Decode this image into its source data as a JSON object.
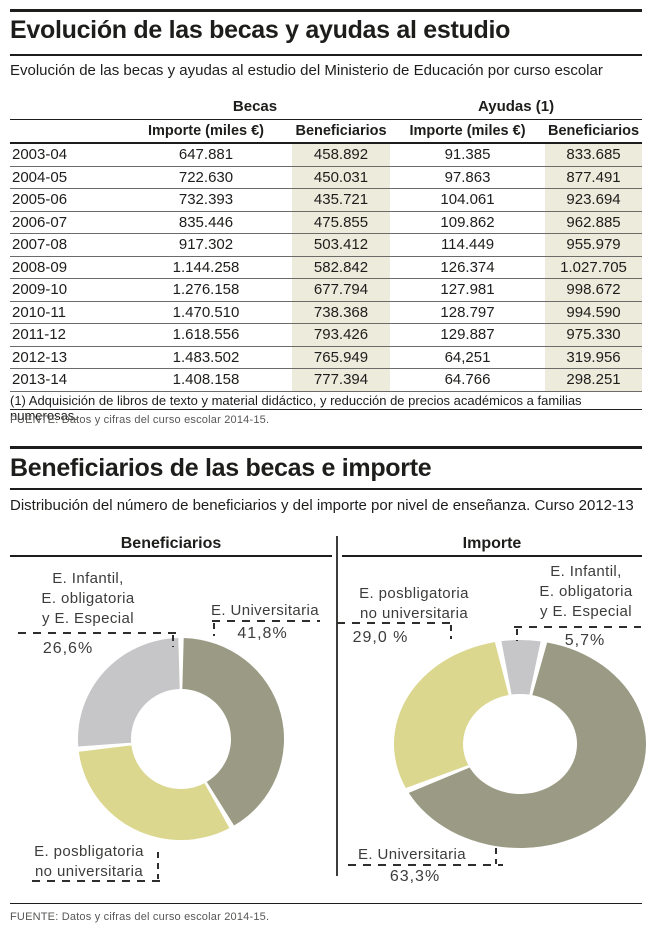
{
  "colors": {
    "olive": "#9b9b85",
    "pale_yellow": "#dbd78e",
    "light_gray": "#c6c6c9",
    "row_highlight": "#edebdc",
    "ink": "#1d1d1b"
  },
  "section1": {
    "title": "Evolución de las becas y ayudas al estudio",
    "subtitle": "Evolución de las becas y ayudas al estudio del Ministerio de Educación por curso escolar",
    "table": {
      "group_headers": [
        "Becas",
        "Ayudas (1)"
      ],
      "col_headers": [
        "",
        "Importe (miles €)",
        "Beneficiarios",
        "Importe (miles €)",
        "Beneficiarios"
      ],
      "rows": [
        [
          "2003-04",
          "647.881",
          "458.892",
          "91.385",
          "833.685"
        ],
        [
          "2004-05",
          "722.630",
          "450.031",
          "97.863",
          "877.491"
        ],
        [
          "2005-06",
          "732.393",
          "435.721",
          "104.061",
          "923.694"
        ],
        [
          "2006-07",
          "835.446",
          "475.855",
          "109.862",
          "962.885"
        ],
        [
          "2007-08",
          "917.302",
          "503.412",
          "114.449",
          "955.979"
        ],
        [
          "2008-09",
          "1.144.258",
          "582.842",
          "126.374",
          "1.027.705"
        ],
        [
          "2009-10",
          "1.276.158",
          "677.794",
          "127.981",
          "998.672"
        ],
        [
          "2010-11",
          "1.470.510",
          "738.368",
          "128.797",
          "994.590"
        ],
        [
          "2011-12",
          "1.618.556",
          "793.426",
          "129.887",
          "975.330"
        ],
        [
          "2012-13",
          "1.483.502",
          "765.949",
          "64,251",
          "319.956"
        ],
        [
          "2013-14",
          "1.408.158",
          "777.394",
          "64.766",
          "298.251"
        ]
      ]
    },
    "footnote": "(1) Adquisición de libros de texto y material didáctico, y reducción de precios académicos a familias numerosas.",
    "source": "FUENTE: Datos y cifras del curso escolar 2014-15."
  },
  "section2": {
    "title": "Beneficiarios de las becas e importe",
    "subtitle": "Distribución del número de beneficiarios y del importe por nivel de enseñanza. Curso 2012-13",
    "source": "FUENTE: Datos y cifras del curso escolar 2014-15."
  },
  "chart_data": [
    {
      "type": "pie",
      "title": "Beneficiarios",
      "donut": true,
      "legend_position": "callouts",
      "slices": [
        {
          "label": "E. Universitaria",
          "value": 41.8,
          "pct_label": "41,8%",
          "color": "#9b9b85"
        },
        {
          "label": "E. posbligatoria no universitaria",
          "value": 31.6,
          "pct_label": "",
          "color": "#dbd78e"
        },
        {
          "label": "E. Infantil, E. obligatoria y E. Especial",
          "value": 26.6,
          "pct_label": "26,6%",
          "color": "#c6c6c9"
        }
      ],
      "callouts": {
        "infantil": {
          "text": "E. Infantil,\nE. obligatoria\ny E. Especial",
          "pct": "26,6%"
        },
        "universitaria": {
          "text": "E. Universitaria",
          "pct": "41,8%"
        },
        "posbligatoria": {
          "text": "E. posbligatoria\nno universitaria",
          "pct": ""
        }
      }
    },
    {
      "type": "pie",
      "title": "Importe",
      "donut": true,
      "legend_position": "callouts",
      "slices": [
        {
          "label": "E. Infantil, E. obligatoria y E. Especial",
          "value": 5.7,
          "pct_label": "5,7%",
          "color": "#c6c6c9"
        },
        {
          "label": "E. Universitaria",
          "value": 63.3,
          "pct_label": "63,3%",
          "color": "#9b9b85"
        },
        {
          "label": "E. posbligatoria no universitaria",
          "value": 29.0,
          "pct_label": "29,0 %",
          "color": "#dbd78e"
        }
      ],
      "callouts": {
        "posbligatoria": {
          "text": "E. posbligatoria\nno universitaria",
          "pct": "29,0 %"
        },
        "infantil": {
          "text": "E. Infantil,\nE. obligatoria\ny E. Especial",
          "pct": "5,7%"
        },
        "universitaria": {
          "text": "E. Universitaria",
          "pct": "63,3%"
        }
      }
    }
  ]
}
